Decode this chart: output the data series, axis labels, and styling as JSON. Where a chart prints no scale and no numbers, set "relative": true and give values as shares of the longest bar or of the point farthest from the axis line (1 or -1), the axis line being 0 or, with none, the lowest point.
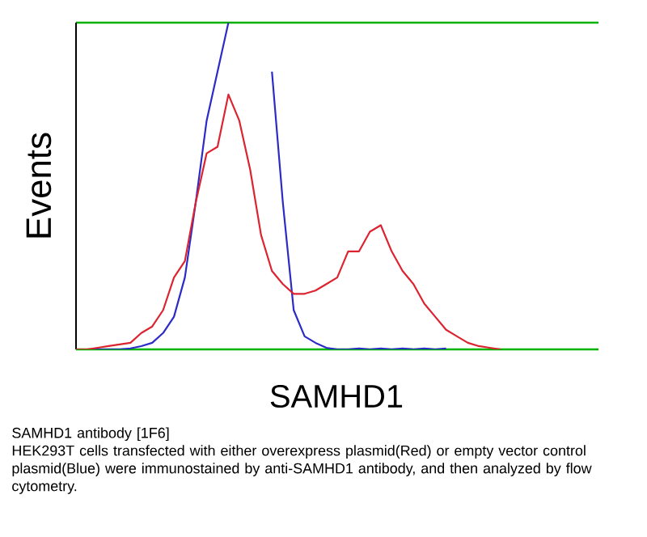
{
  "chart_data": {
    "type": "line",
    "relative": true,
    "xlabel": "SAMHD1",
    "ylabel": "Events",
    "categories": [
      null,
      null,
      null,
      null,
      null,
      null,
      null,
      null,
      null,
      null,
      null,
      null,
      null,
      null,
      null,
      null,
      null,
      null,
      null,
      null,
      null,
      null,
      null,
      null,
      null,
      null,
      null,
      null,
      null,
      null,
      null,
      null,
      null,
      null,
      null,
      null,
      null,
      null,
      null,
      null,
      null,
      null,
      null,
      null,
      null,
      null,
      null,
      null,
      null
    ],
    "series": [
      {
        "color": "#2b2bc8",
        "values": [
          0,
          0,
          0,
          0,
          0,
          0.003,
          0.01,
          0.02,
          0.05,
          0.1,
          0.22,
          0.45,
          0.7,
          0.85,
          1.0,
          null,
          null,
          null,
          0.85,
          0.45,
          0.12,
          0.04,
          0.02,
          0.005,
          0,
          0,
          0.003,
          0,
          0.003,
          0,
          0.003,
          0,
          0.003,
          0,
          0.003,
          null,
          null,
          null,
          null,
          null,
          null,
          null,
          null,
          null,
          null,
          null,
          null,
          null,
          null
        ]
      },
      {
        "color": "#dc2430",
        "values": [
          0,
          0,
          0.005,
          0.01,
          0.015,
          0.02,
          0.05,
          0.07,
          0.12,
          0.22,
          0.27,
          0.45,
          0.6,
          0.62,
          0.78,
          0.7,
          0.55,
          0.35,
          0.24,
          0.2,
          0.17,
          0.17,
          0.18,
          0.2,
          0.22,
          0.3,
          0.3,
          0.36,
          0.38,
          0.3,
          0.24,
          0.2,
          0.14,
          0.1,
          0.06,
          0.04,
          0.02,
          0.01,
          0.005,
          0,
          null,
          null,
          null,
          null,
          null,
          null,
          null,
          null,
          null
        ]
      }
    ],
    "annotations": [
      "SAMHD1 antibody [1F6]",
      "HEK293T cells transfected with either overexpress plasmid(Red) or empty vector control plasmid(Blue) were immunostained by anti-SAMHD1 antibody, and then analyzed by flow cytometry."
    ]
  }
}
